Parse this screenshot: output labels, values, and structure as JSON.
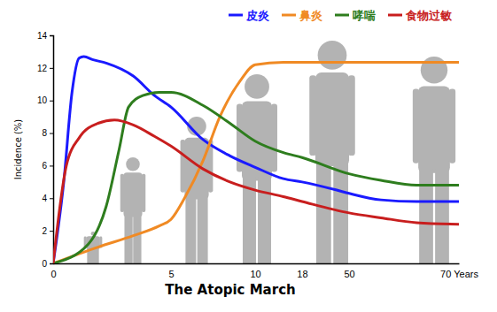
{
  "chart_data": {
    "type": "line",
    "x_label": "The Atopic March",
    "y_label": "Incidence (%)",
    "xlim": [
      0,
      70
    ],
    "xticks": [
      0,
      5,
      10,
      18,
      50,
      {
        "value": 70,
        "label": "70 Years"
      }
    ],
    "ylim": [
      0,
      14
    ],
    "yticks": [
      0,
      2,
      4,
      6,
      8,
      10,
      12,
      14
    ],
    "legend": "top-right",
    "series": [
      {
        "name": "皮炎",
        "color": "#1a1aff",
        "x": [
          0,
          0.45,
          0.8,
          1.1,
          1.3,
          1.7,
          2.25,
          3.4,
          4.3,
          5,
          6.9,
          8.5,
          10,
          14.8,
          18,
          41.6,
          50,
          55.8,
          62.3,
          70
        ],
        "values": [
          0,
          5,
          10.5,
          12.6,
          12.7,
          12.5,
          12.3,
          11.5,
          10.3,
          9.6,
          7.6,
          6.6,
          5.9,
          5.2,
          5.0,
          4.5,
          4.3,
          3.9,
          3.8,
          3.8
        ]
      },
      {
        "name": "鼻炎",
        "color": "#f08a24",
        "x": [
          0,
          1.9,
          3.4,
          4.5,
          5,
          5.8,
          6.9,
          7.9,
          9.1,
          10,
          14.8,
          18,
          70
        ],
        "values": [
          0,
          1.0,
          1.7,
          2.3,
          2.7,
          4.0,
          6.3,
          9.0,
          11.2,
          12.2,
          12.35,
          12.35,
          12.35
        ]
      },
      {
        "name": "哮喘",
        "color": "#2e7d1e",
        "x": [
          0,
          1.5,
          2.25,
          2.8,
          3.2,
          3.8,
          4.5,
          5,
          6.9,
          8.5,
          10,
          14.8,
          18,
          50,
          55.8,
          62.3,
          70
        ],
        "values": [
          0,
          1.2,
          3.5,
          7,
          9.6,
          10.3,
          10.5,
          10.5,
          9.7,
          8.6,
          7.5,
          6.8,
          6.5,
          5.5,
          5.1,
          4.8,
          4.8
        ]
      },
      {
        "name": "食物过敏",
        "color": "#c81e1e",
        "x": [
          0,
          0.56,
          1.1,
          1.9,
          2.6,
          3.4,
          4.3,
          5,
          6.9,
          8.5,
          10,
          14.8,
          18,
          50,
          55.8,
          62.3,
          70
        ],
        "values": [
          0,
          6,
          7.7,
          8.6,
          8.8,
          8.5,
          7.8,
          7.2,
          5.8,
          5.0,
          4.5,
          4.1,
          3.8,
          3.1,
          2.8,
          2.5,
          2.4
        ]
      }
    ]
  }
}
